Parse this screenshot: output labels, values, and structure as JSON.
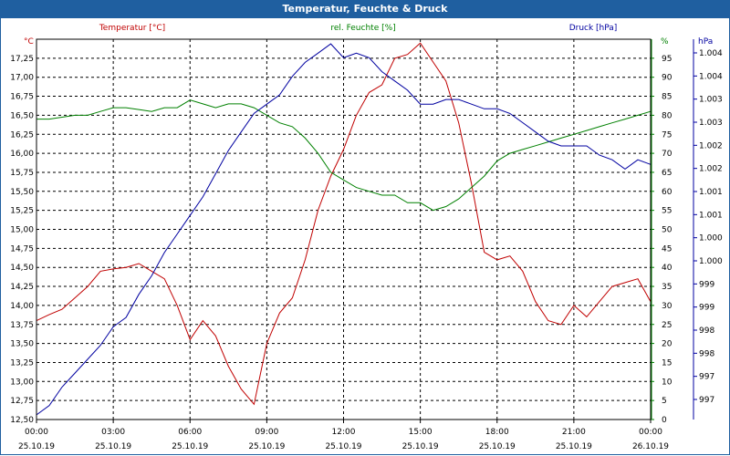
{
  "window": {
    "title": "Temperatur, Feuchte & Druck"
  },
  "colors": {
    "temperature": "#c00000",
    "humidity": "#008000",
    "pressure": "#0000a0",
    "grid": "#000000",
    "titlebar": "#1f5fa0"
  },
  "chart_data": {
    "type": "line",
    "title": "Temperatur, Feuchte & Druck",
    "grid": true,
    "x_axis": {
      "tick_times": [
        "00:00",
        "03:00",
        "06:00",
        "09:00",
        "12:00",
        "15:00",
        "18:00",
        "21:00",
        "00:00"
      ],
      "tick_dates": [
        "25.10.19",
        "25.10.19",
        "25.10.19",
        "25.10.19",
        "25.10.19",
        "25.10.19",
        "25.10.19",
        "25.10.19",
        "26.10.19"
      ],
      "range_hours": [
        0,
        24
      ]
    },
    "axes": {
      "temperature": {
        "label": "Temperatur [°C]",
        "unit": "°C",
        "range": [
          12.5,
          17.5
        ],
        "ticks": [
          "12,50",
          "12,75",
          "13,00",
          "13,25",
          "13,50",
          "13,75",
          "14,00",
          "14,25",
          "14,50",
          "14,75",
          "15,00",
          "15,25",
          "15,50",
          "15,75",
          "16,00",
          "16,25",
          "16,50",
          "16,75",
          "17,00",
          "17,25"
        ]
      },
      "humidity": {
        "label": "rel. Feuchte [%]",
        "unit": "%",
        "range": [
          0,
          100
        ],
        "ticks": [
          "0",
          "5",
          "10",
          "15",
          "20",
          "25",
          "30",
          "35",
          "40",
          "45",
          "50",
          "55",
          "60",
          "65",
          "70",
          "75",
          "80",
          "85",
          "90",
          "95"
        ]
      },
      "pressure": {
        "label": "Druck [hPa]",
        "unit": "hPa",
        "range": [
          996.5,
          1004.7
        ],
        "ticks": [
          "997",
          "997",
          "998",
          "998",
          "999",
          "999",
          "1.000",
          "1.000",
          "1.001",
          "1.001",
          "1.002",
          "1.002",
          "1.003",
          "1.003",
          "1.004",
          "1.004"
        ]
      }
    },
    "series": [
      {
        "name": "Temperatur [°C]",
        "axis": "temperature",
        "color": "#c00000",
        "x": [
          0,
          0.5,
          1,
          1.5,
          2,
          2.5,
          3,
          3.5,
          4,
          4.5,
          5,
          5.5,
          6,
          6.5,
          7,
          7.5,
          8,
          8.5,
          9,
          9.5,
          10,
          10.5,
          11,
          11.5,
          12,
          12.5,
          13,
          13.5,
          14,
          14.5,
          15,
          15.5,
          16,
          16.5,
          17,
          17.5,
          18,
          18.5,
          19,
          19.5,
          20,
          20.5,
          21,
          21.5,
          22,
          22.5,
          23,
          23.5,
          24
        ],
        "y": [
          13.8,
          13.88,
          13.95,
          14.1,
          14.25,
          14.45,
          14.48,
          14.5,
          14.55,
          14.45,
          14.35,
          14.0,
          13.55,
          13.8,
          13.6,
          13.2,
          12.9,
          12.7,
          13.5,
          13.9,
          14.1,
          14.6,
          15.25,
          15.7,
          16.05,
          16.5,
          16.8,
          16.9,
          17.25,
          17.3,
          17.45,
          17.2,
          16.95,
          16.4,
          15.6,
          14.7,
          14.6,
          14.65,
          14.45,
          14.05,
          13.8,
          13.75,
          14.0,
          13.85,
          14.05,
          14.25,
          14.3,
          14.35,
          14.05
        ]
      },
      {
        "name": "rel. Feuchte [%]",
        "axis": "humidity",
        "color": "#008000",
        "x": [
          0,
          0.5,
          1,
          1.5,
          2,
          2.5,
          3,
          3.5,
          4,
          4.5,
          5,
          5.5,
          6,
          6.5,
          7,
          7.5,
          8,
          8.5,
          9,
          9.5,
          10,
          10.5,
          11,
          11.5,
          12,
          12.5,
          13,
          13.5,
          14,
          14.5,
          15,
          15.5,
          16,
          16.5,
          17,
          17.5,
          18,
          18.5,
          19,
          19.5,
          20,
          20.5,
          21,
          21.5,
          22,
          22.5,
          23,
          23.5,
          24
        ],
        "y": [
          79,
          79,
          79.5,
          80,
          80,
          81,
          82,
          82,
          81.5,
          81,
          82,
          82,
          84,
          83,
          82,
          83,
          83,
          82,
          80,
          78,
          77,
          74,
          70,
          65,
          63,
          61,
          60,
          59,
          59,
          57,
          57,
          55,
          56,
          58,
          61,
          64,
          68,
          70,
          71,
          72,
          73,
          74,
          75,
          76,
          77,
          78,
          79,
          80,
          81
        ]
      },
      {
        "name": "Druck [hPa]",
        "axis": "pressure",
        "color": "#0000a0",
        "x": [
          0,
          0.5,
          1,
          1.5,
          2,
          2.5,
          3,
          3.5,
          4,
          4.5,
          5,
          5.5,
          6,
          6.5,
          7,
          7.5,
          8,
          8.5,
          9,
          9.5,
          10,
          10.5,
          11,
          11.5,
          12,
          12.5,
          13,
          13.5,
          14,
          14.5,
          15,
          15.5,
          16,
          16.5,
          17,
          17.5,
          18,
          18.5,
          19,
          19.5,
          20,
          20.5,
          21,
          21.5,
          22,
          22.5,
          23,
          23.5,
          24
        ],
        "y": [
          996.6,
          996.8,
          997.2,
          997.5,
          997.8,
          998.1,
          998.5,
          998.7,
          999.2,
          999.6,
          1000.1,
          1000.5,
          1000.9,
          1001.3,
          1001.8,
          1002.3,
          1002.7,
          1003.1,
          1003.3,
          1003.5,
          1003.9,
          1004.2,
          1004.4,
          1004.6,
          1004.3,
          1004.4,
          1004.3,
          1004.0,
          1003.8,
          1003.6,
          1003.3,
          1003.3,
          1003.4,
          1003.4,
          1003.3,
          1003.2,
          1003.2,
          1003.1,
          1002.9,
          1002.7,
          1002.5,
          1002.4,
          1002.4,
          1002.4,
          1002.2,
          1002.1,
          1001.9,
          1002.1,
          1002.0
        ]
      }
    ]
  }
}
